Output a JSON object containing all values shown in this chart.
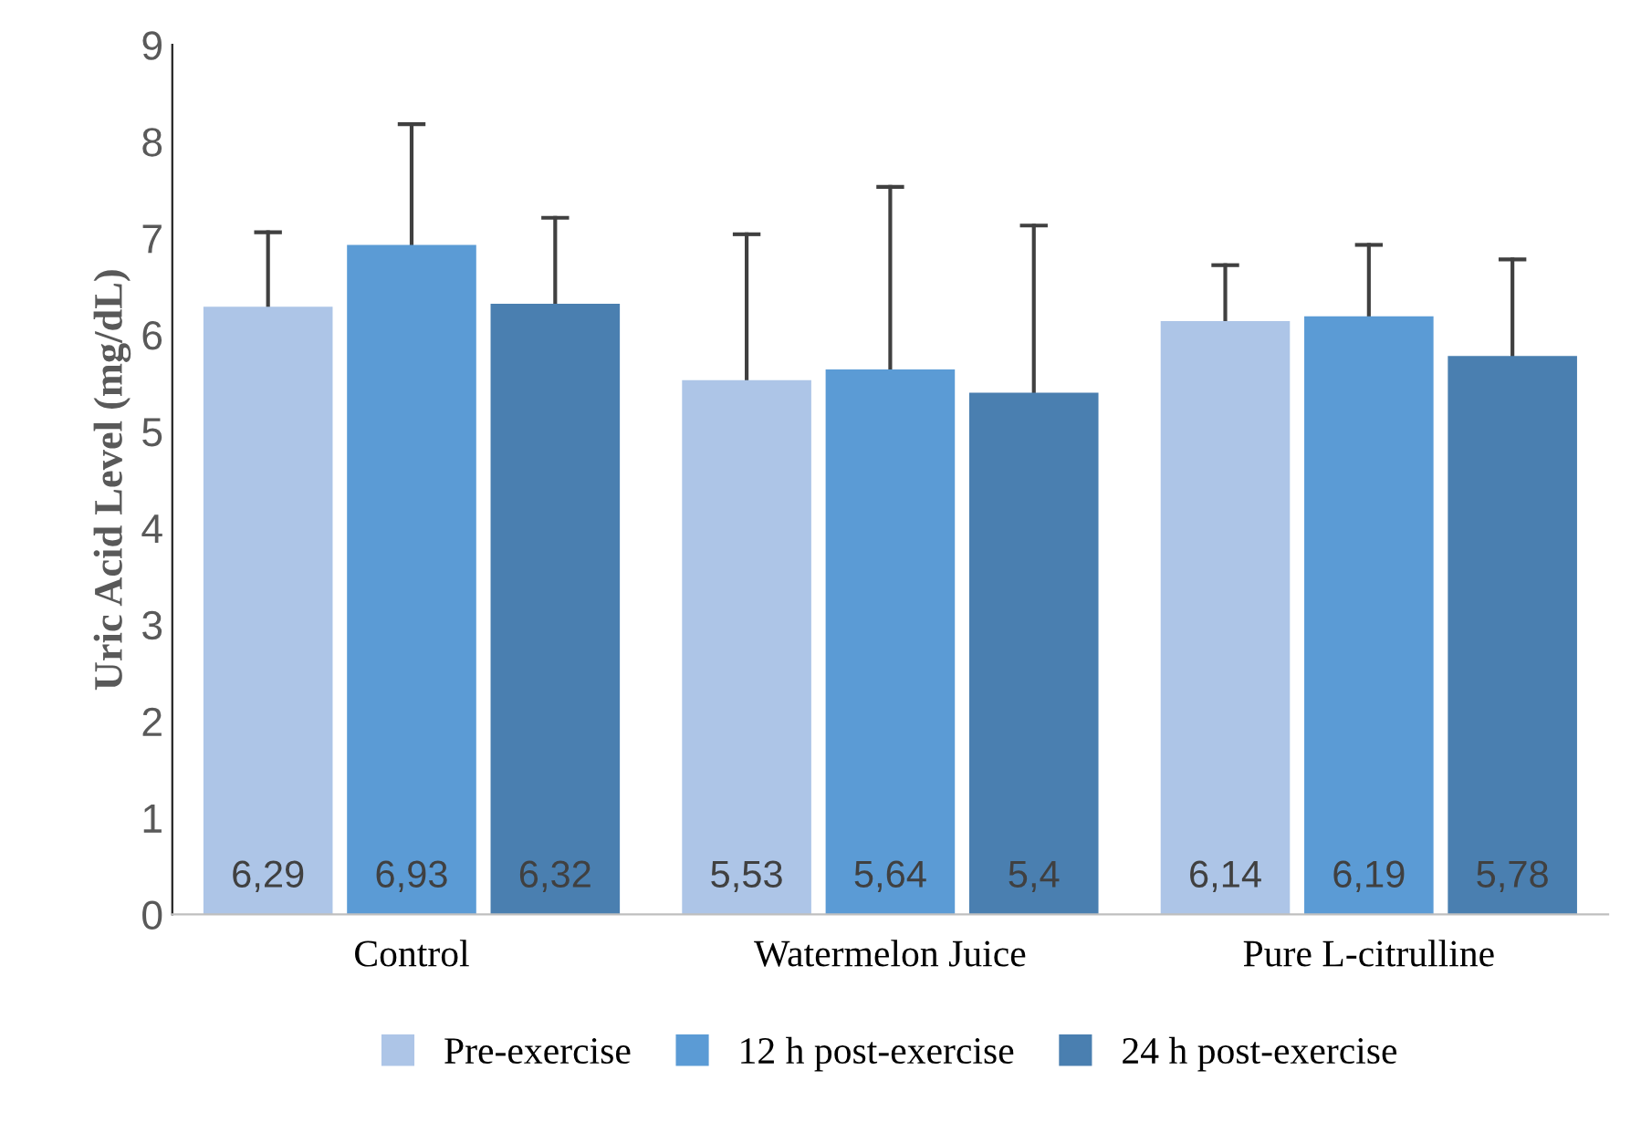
{
  "chart_data": {
    "type": "bar",
    "ylabel": "Uric Acid Level (mg/dL)",
    "categories": [
      "Control",
      "Watermelon Juice",
      "Pure L-citrulline"
    ],
    "series": [
      {
        "name": "Pre-exercise",
        "color": "#adc5e7",
        "values": [
          6.29,
          5.53,
          6.14
        ],
        "value_labels": [
          "6,29",
          "5,53",
          "6,14"
        ],
        "errors": [
          [
            6.29,
            7.06
          ],
          [
            5.53,
            7.04
          ],
          [
            6.14,
            6.72
          ]
        ]
      },
      {
        "name": "12 h post-exercise",
        "color": "#5b9bd5",
        "values": [
          6.93,
          5.64,
          6.19
        ],
        "value_labels": [
          "6,93",
          "5,64",
          "6,19"
        ],
        "errors": [
          [
            6.93,
            8.18
          ],
          [
            5.64,
            7.53
          ],
          [
            6.19,
            6.93
          ]
        ]
      },
      {
        "name": "24 h post-exercise",
        "color": "#4a7fb0",
        "values": [
          6.32,
          5.4,
          5.78
        ],
        "value_labels": [
          "6,32",
          "5,4",
          "5,78"
        ],
        "errors": [
          [
            6.32,
            7.21
          ],
          [
            5.4,
            7.13
          ],
          [
            5.78,
            6.78
          ]
        ]
      }
    ],
    "ylim": [
      0,
      9
    ],
    "yticks": [
      0,
      1,
      2,
      3,
      4,
      5,
      6,
      7,
      8,
      9
    ],
    "grid": false,
    "legend": "bottom"
  }
}
